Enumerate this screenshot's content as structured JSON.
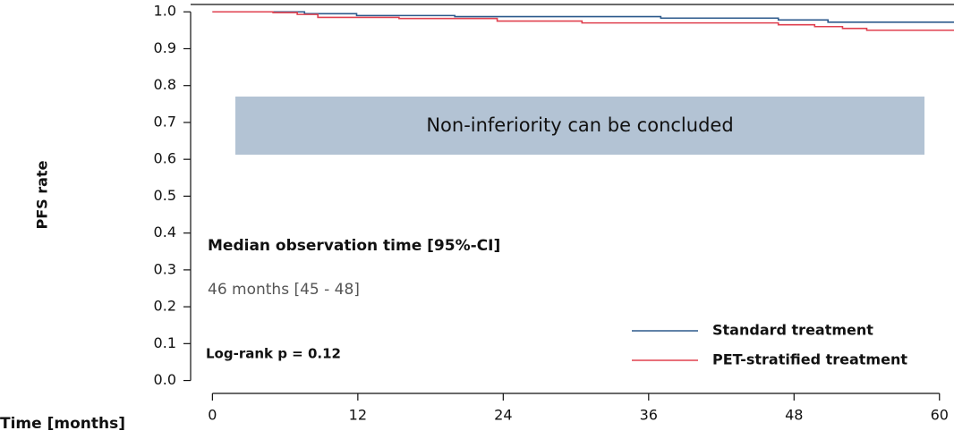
{
  "chart_data": {
    "type": "step",
    "ylabel": "PFS rate",
    "xlabel": "Time [months]",
    "xlim": [
      -1.8,
      61.2
    ],
    "ylim": [
      -0.035,
      1.02
    ],
    "xticks": [
      0,
      12,
      24,
      36,
      48,
      60
    ],
    "yticks": [
      {
        "value": 0,
        "label": "0.0"
      },
      0.1,
      0.2,
      0.3,
      0.4,
      0.5,
      0.6,
      0.7,
      0.8,
      0.9,
      {
        "value": 1,
        "label": "1.0"
      }
    ],
    "series": [
      {
        "name": "Standard treatment",
        "color": "#2d5a8c",
        "x": [
          0,
          7.6,
          11.9,
          20,
          37,
          46.7,
          50.8,
          61.2
        ],
        "values": [
          1,
          0.995,
          0.99,
          0.987,
          0.983,
          0.978,
          0.972,
          0.972
        ]
      },
      {
        "name": "PET-stratified treatment",
        "color": "#e0404f",
        "x": [
          0,
          5,
          7,
          8.7,
          15.4,
          23.5,
          30.5,
          46.7,
          49.7,
          52,
          54,
          61.2
        ],
        "values": [
          1,
          0.998,
          0.993,
          0.985,
          0.982,
          0.975,
          0.97,
          0.965,
          0.96,
          0.955,
          0.95,
          0.95
        ]
      }
    ],
    "annotations": {
      "banner": "Non-inferiority can be concluded",
      "median_title": "Median observation time [95%-CI]",
      "median_value": "46 months [45 - 48]",
      "logrank": "Log-rank p = 0.12"
    }
  }
}
